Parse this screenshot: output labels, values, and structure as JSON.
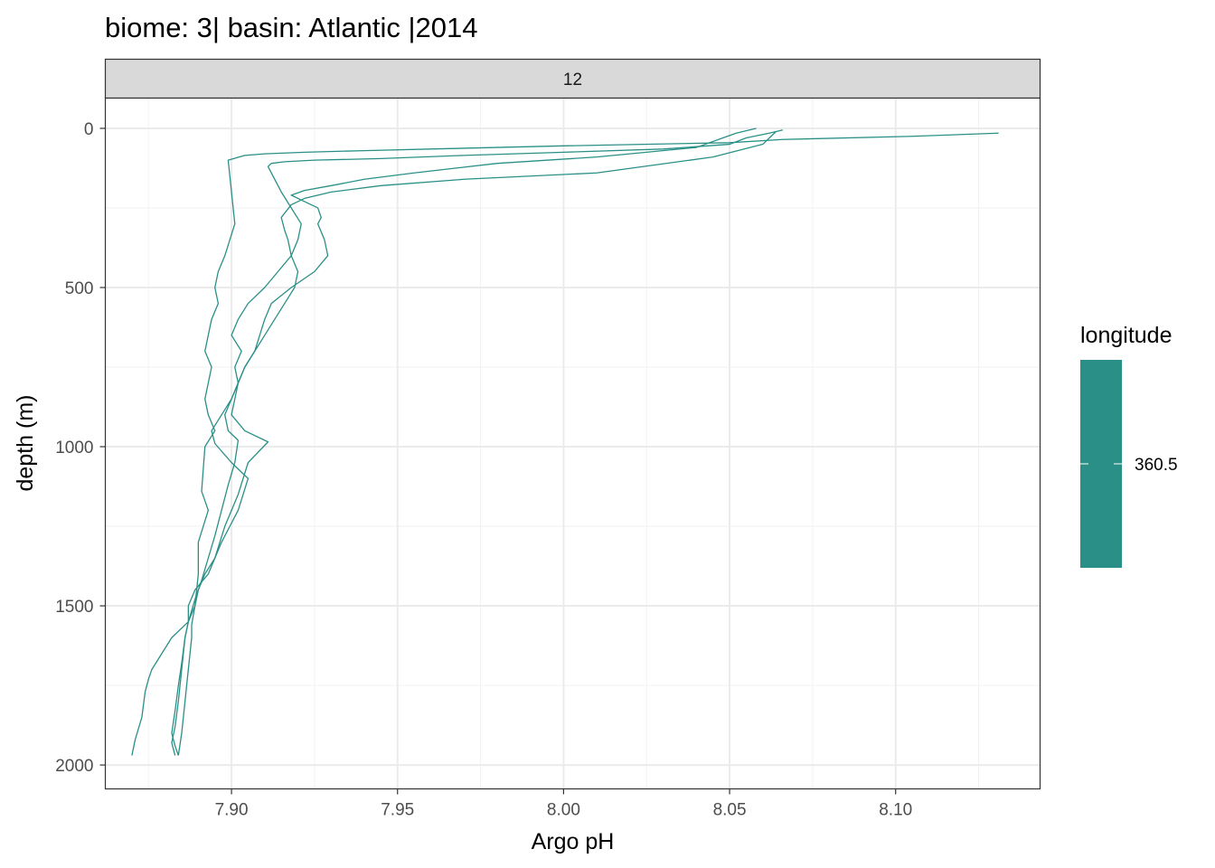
{
  "title": "biome: 3| basin: Atlantic |2014",
  "facet": {
    "strip_label": "12"
  },
  "axes": {
    "x_title": "Argo pH",
    "y_title": "depth (m)",
    "x_ticks": [
      "7.90",
      "7.95",
      "8.00",
      "8.05",
      "8.10"
    ],
    "y_ticks": [
      "0",
      "500",
      "1000",
      "1500",
      "2000"
    ]
  },
  "legend": {
    "title": "longitude",
    "labels": [
      "360.5"
    ],
    "color": "#2A9087"
  },
  "chart_data": {
    "type": "line",
    "title": "biome: 3| basin: Atlantic |2014",
    "xlabel": "Argo pH",
    "ylabel": "depth (m)",
    "xlim": [
      7.862,
      8.1435
    ],
    "ylim": [
      2075,
      -95
    ],
    "y_reversed": true,
    "grid": true,
    "legend_position": "right",
    "series_color": "#2A9087",
    "series": [
      {
        "x": [
          8.131,
          8.105,
          8.066,
          8.05,
          8.0,
          7.98,
          7.96,
          7.94,
          7.922,
          7.91,
          7.904,
          7.899,
          7.9,
          7.901,
          7.898,
          7.896,
          7.895,
          7.896,
          7.894,
          7.893,
          7.892,
          7.894,
          7.893,
          7.892,
          7.893,
          7.895,
          7.892,
          7.891,
          7.893,
          7.89,
          7.89,
          7.889,
          7.887,
          7.882,
          7.879,
          7.876,
          7.875,
          7.874,
          7.873,
          7.871,
          7.87
        ],
        "y": [
          15,
          25,
          35,
          45,
          55,
          60,
          65,
          70,
          75,
          80,
          85,
          100,
          200,
          300,
          400,
          450,
          500,
          550,
          600,
          650,
          700,
          750,
          800,
          850,
          900,
          950,
          1000,
          1140,
          1200,
          1300,
          1400,
          1500,
          1550,
          1600,
          1650,
          1700,
          1730,
          1770,
          1850,
          1920,
          1970
        ]
      },
      {
        "x": [
          8.066,
          8.062,
          8.055,
          8.05,
          8.03,
          8.0,
          7.97,
          7.945,
          7.925,
          7.916,
          7.912,
          7.911,
          7.915,
          7.918,
          7.921,
          7.92,
          7.918,
          7.914,
          7.91,
          7.905,
          7.902,
          7.9,
          7.903,
          7.901,
          7.902,
          7.9,
          7.904,
          7.911,
          7.905,
          7.902,
          7.898,
          7.895,
          7.892,
          7.89,
          7.889,
          7.888,
          7.888,
          7.887,
          7.886,
          7.885,
          7.884
        ],
        "y": [
          5,
          15,
          30,
          50,
          65,
          75,
          85,
          95,
          100,
          105,
          110,
          120,
          200,
          250,
          300,
          350,
          400,
          450,
          500,
          550,
          600,
          650,
          700,
          750,
          800,
          900,
          950,
          985,
          1050,
          1150,
          1250,
          1350,
          1400,
          1450,
          1500,
          1560,
          1600,
          1700,
          1800,
          1900,
          1970
        ]
      },
      {
        "x": [
          8.058,
          8.052,
          8.048,
          8.04,
          8.01,
          7.98,
          7.955,
          7.94,
          7.93,
          7.922,
          7.918,
          7.922,
          7.926,
          7.927,
          7.926,
          7.928,
          7.929,
          7.925,
          7.918,
          7.912,
          7.91,
          7.907,
          7.904,
          7.9,
          7.897,
          7.894,
          7.895,
          7.9,
          7.905,
          7.902,
          7.897,
          7.893,
          7.889,
          7.887,
          7.887,
          7.886,
          7.885,
          7.884,
          7.883,
          7.882,
          7.883
        ],
        "y": [
          0,
          15,
          30,
          60,
          90,
          110,
          140,
          160,
          180,
          195,
          210,
          230,
          250,
          280,
          300,
          350,
          400,
          450,
          500,
          550,
          600,
          700,
          750,
          850,
          900,
          950,
          990,
          1050,
          1100,
          1200,
          1300,
          1400,
          1450,
          1500,
          1550,
          1600,
          1700,
          1800,
          1880,
          1930,
          1970
        ]
      },
      {
        "x": [
          8.064,
          8.062,
          8.06,
          8.045,
          8.01,
          7.97,
          7.945,
          7.93,
          7.922,
          7.918,
          7.915,
          7.916,
          7.917,
          7.918,
          7.92,
          7.919,
          7.916,
          7.913,
          7.91,
          7.907,
          7.904,
          7.902,
          7.9,
          7.898,
          7.899,
          7.902,
          7.901,
          7.899,
          7.897,
          7.895,
          7.893,
          7.891,
          7.889,
          7.887,
          7.886,
          7.885,
          7.884,
          7.883,
          7.882,
          7.883,
          7.884
        ],
        "y": [
          10,
          30,
          50,
          90,
          140,
          160,
          180,
          200,
          220,
          240,
          280,
          320,
          350,
          400,
          450,
          500,
          550,
          600,
          650,
          700,
          750,
          800,
          850,
          900,
          950,
          980,
          1050,
          1120,
          1200,
          1280,
          1350,
          1420,
          1480,
          1550,
          1600,
          1680,
          1750,
          1830,
          1900,
          1940,
          1970
        ]
      }
    ]
  }
}
